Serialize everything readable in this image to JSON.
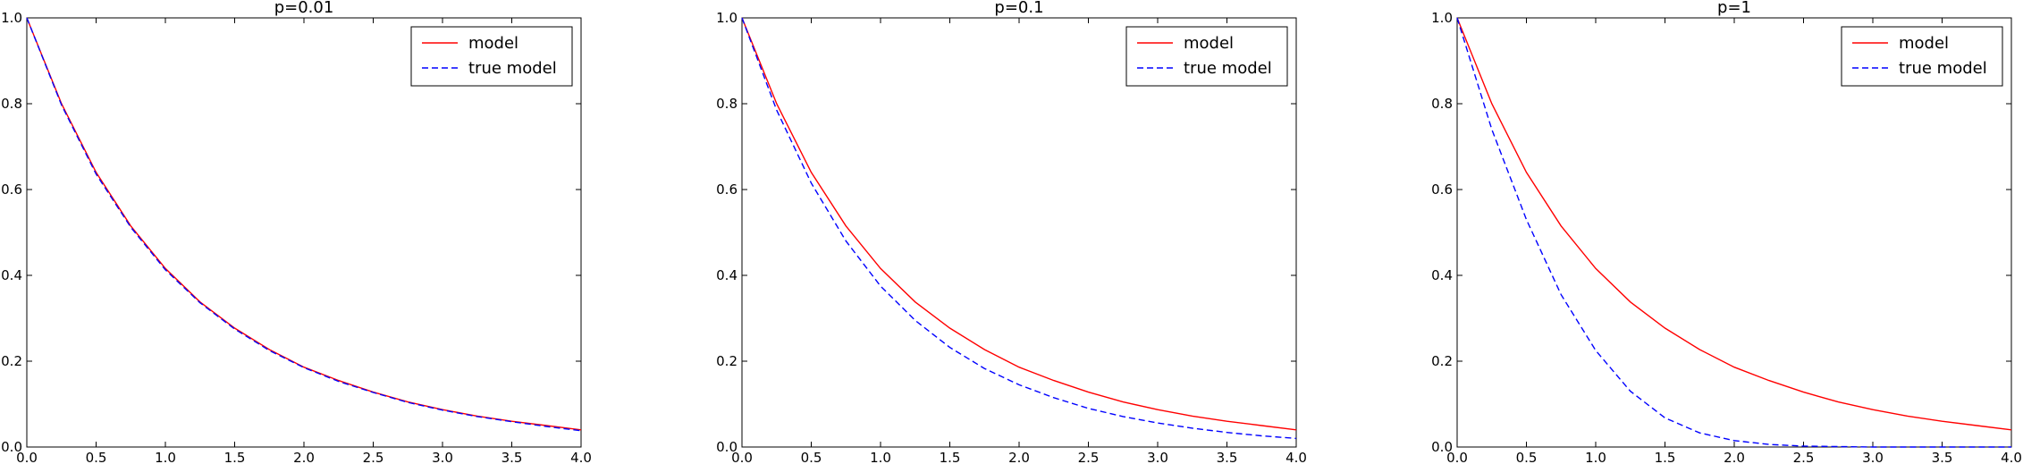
{
  "chart_data": [
    {
      "type": "line",
      "title": "p=0.01",
      "xlabel": "",
      "ylabel": "",
      "xlim": [
        0.0,
        4.0
      ],
      "ylim": [
        0.0,
        1.0
      ],
      "xticks": [
        "0.0",
        "0.5",
        "1.0",
        "1.5",
        "2.0",
        "2.5",
        "3.0",
        "3.5",
        "4.0"
      ],
      "yticks": [
        "0.0",
        "0.2",
        "0.4",
        "0.6",
        "0.8",
        "1.0"
      ],
      "grid": false,
      "legend_position": "top-right",
      "x": [
        0.0,
        0.25,
        0.5,
        0.75,
        1.0,
        1.25,
        1.5,
        1.75,
        2.0,
        2.25,
        2.5,
        2.75,
        3.0,
        3.25,
        3.5,
        3.75,
        4.0
      ],
      "series": [
        {
          "name": "model",
          "color": "#ff0000",
          "style": "solid",
          "values": [
            1.0,
            0.8,
            0.64,
            0.515,
            0.416,
            0.338,
            0.277,
            0.227,
            0.186,
            0.155,
            0.128,
            0.105,
            0.087,
            0.072,
            0.06,
            0.05,
            0.04
          ]
        },
        {
          "name": "true model",
          "color": "#0000ff",
          "style": "dashed",
          "values": [
            1.0,
            0.797,
            0.636,
            0.512,
            0.413,
            0.336,
            0.275,
            0.225,
            0.185,
            0.153,
            0.127,
            0.104,
            0.086,
            0.071,
            0.059,
            0.048,
            0.038
          ]
        }
      ]
    },
    {
      "type": "line",
      "title": "p=0.1",
      "xlabel": "",
      "ylabel": "",
      "xlim": [
        0.0,
        4.0
      ],
      "ylim": [
        0.0,
        1.0
      ],
      "xticks": [
        "0.0",
        "0.5",
        "1.0",
        "1.5",
        "2.0",
        "2.5",
        "3.0",
        "3.5",
        "4.0"
      ],
      "yticks": [
        "0.0",
        "0.2",
        "0.4",
        "0.6",
        "0.8",
        "1.0"
      ],
      "grid": false,
      "legend_position": "top-right",
      "x": [
        0.0,
        0.25,
        0.5,
        0.75,
        1.0,
        1.25,
        1.5,
        1.75,
        2.0,
        2.25,
        2.5,
        2.75,
        3.0,
        3.25,
        3.5,
        3.75,
        4.0
      ],
      "series": [
        {
          "name": "model",
          "color": "#ff0000",
          "style": "solid",
          "values": [
            1.0,
            0.8,
            0.64,
            0.515,
            0.416,
            0.338,
            0.277,
            0.227,
            0.186,
            0.155,
            0.128,
            0.105,
            0.087,
            0.072,
            0.06,
            0.05,
            0.04
          ]
        },
        {
          "name": "true model",
          "color": "#0000ff",
          "style": "dashed",
          "values": [
            1.0,
            0.785,
            0.615,
            0.48,
            0.375,
            0.295,
            0.232,
            0.183,
            0.145,
            0.115,
            0.09,
            0.071,
            0.056,
            0.044,
            0.034,
            0.026,
            0.02
          ]
        }
      ]
    },
    {
      "type": "line",
      "title": "p=1",
      "xlabel": "",
      "ylabel": "",
      "xlim": [
        0.0,
        4.0
      ],
      "ylim": [
        0.0,
        1.0
      ],
      "xticks": [
        "0.0",
        "0.5",
        "1.0",
        "1.5",
        "2.0",
        "2.5",
        "3.0",
        "3.5",
        "4.0"
      ],
      "yticks": [
        "0.0",
        "0.2",
        "0.4",
        "0.6",
        "0.8",
        "1.0"
      ],
      "grid": false,
      "legend_position": "top-right",
      "x": [
        0.0,
        0.25,
        0.5,
        0.75,
        1.0,
        1.25,
        1.5,
        1.75,
        2.0,
        2.25,
        2.5,
        2.75,
        3.0,
        3.25,
        3.5,
        3.75,
        4.0
      ],
      "series": [
        {
          "name": "model",
          "color": "#ff0000",
          "style": "solid",
          "values": [
            1.0,
            0.8,
            0.64,
            0.515,
            0.416,
            0.338,
            0.277,
            0.227,
            0.186,
            0.155,
            0.128,
            0.105,
            0.087,
            0.072,
            0.06,
            0.05,
            0.04
          ]
        },
        {
          "name": "true model",
          "color": "#0000ff",
          "style": "dashed",
          "values": [
            1.0,
            0.74,
            0.53,
            0.355,
            0.225,
            0.13,
            0.068,
            0.033,
            0.015,
            0.006,
            0.002,
            0.001,
            0.0,
            0.0,
            0.0,
            0.0,
            0.0
          ]
        }
      ]
    }
  ]
}
